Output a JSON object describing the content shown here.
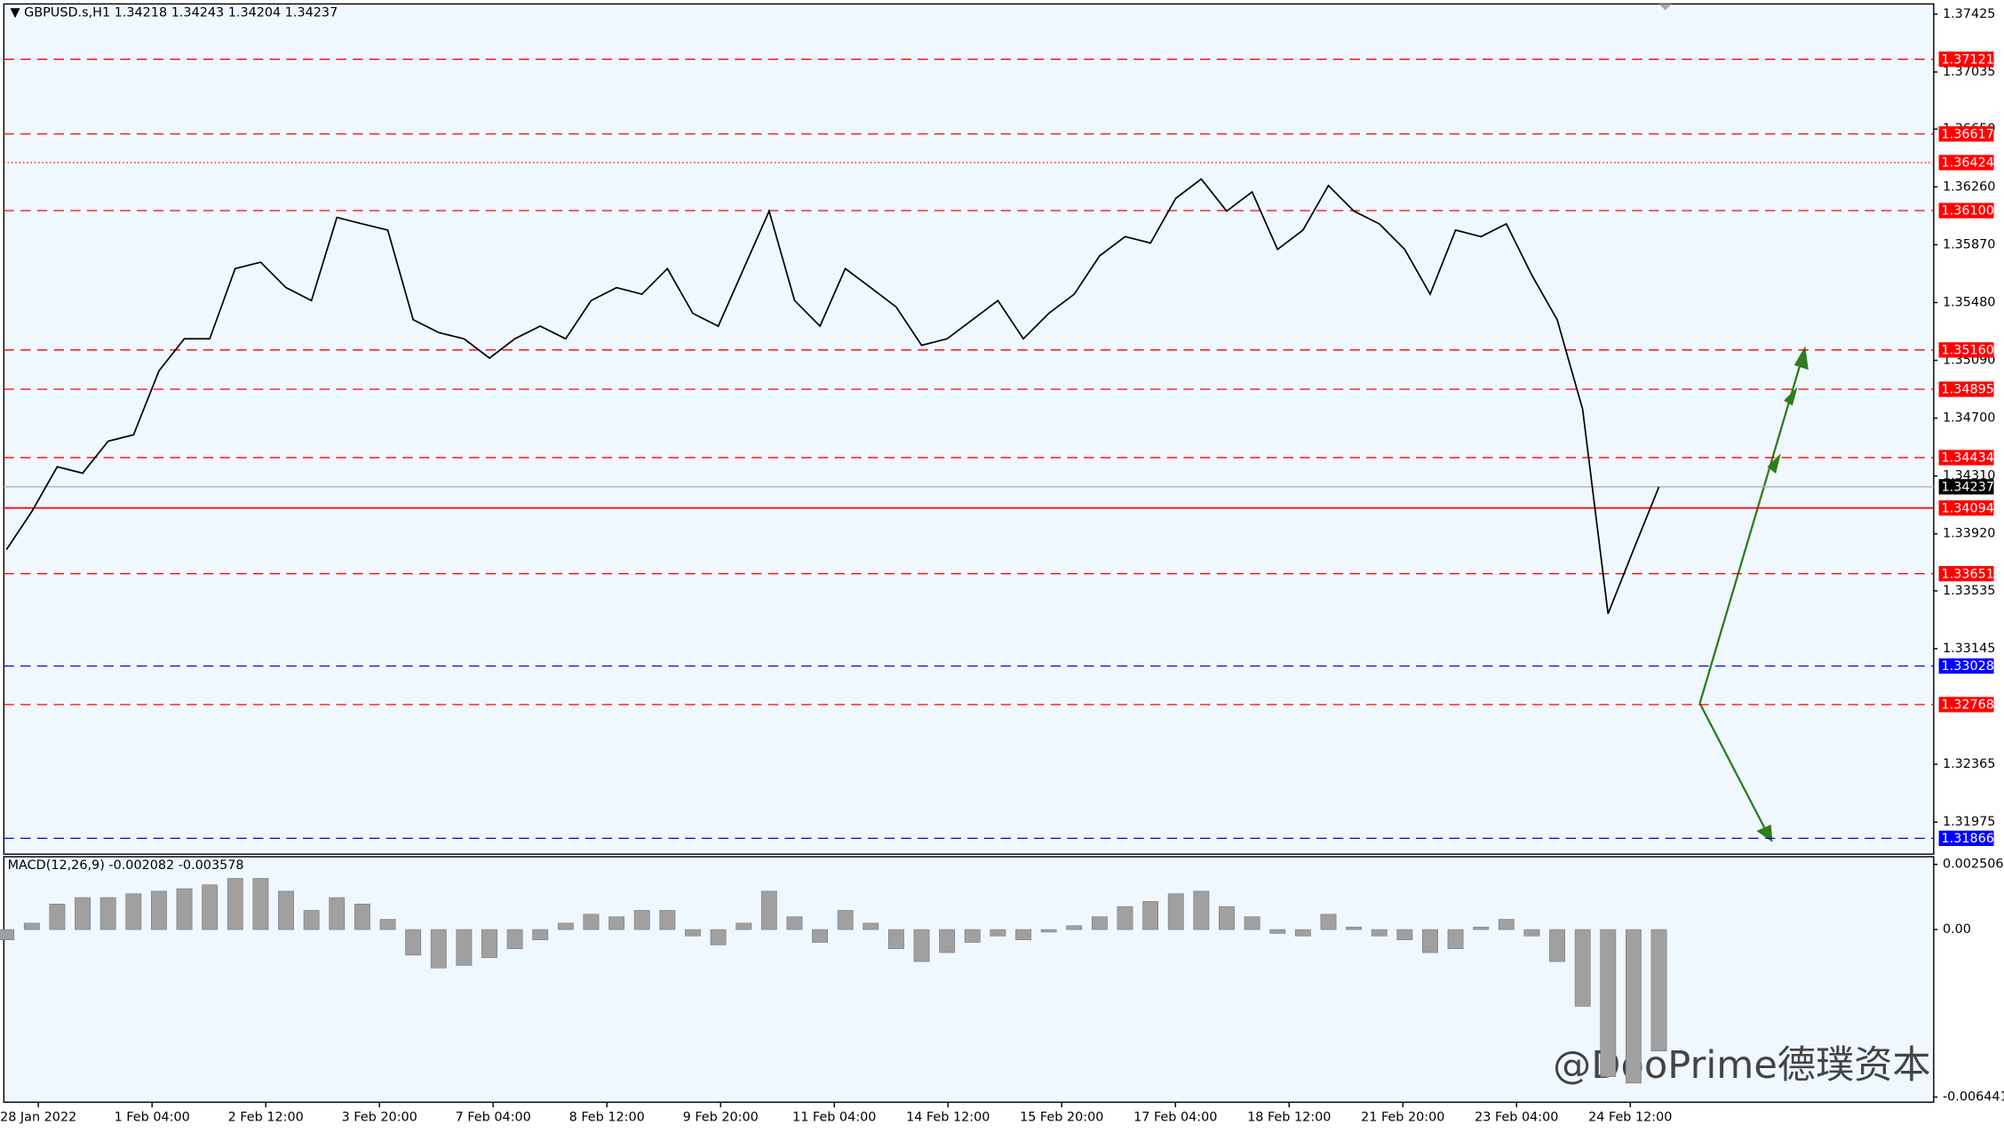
{
  "symbol": "GBPUSD.s,H1",
  "ohlc": [
    1.34218,
    1.34243,
    1.34204,
    1.34237
  ],
  "watermark": "@DooPrime德璞资本",
  "chart_data": [
    {
      "type": "line",
      "color": "#000000",
      "values": [
        1.33812,
        1.3407,
        1.34372,
        1.34329,
        1.34545,
        1.34588,
        1.35019,
        1.35235,
        1.35235,
        1.35709,
        1.35752,
        1.3558,
        1.35493,
        1.36054,
        1.36011,
        1.35968,
        1.35364,
        1.35278,
        1.35235,
        1.35105,
        1.35235,
        1.35321,
        1.35235,
        1.35493,
        1.3558,
        1.35536,
        1.35709,
        1.35407,
        1.35321,
        1.35709,
        1.36097,
        1.35493,
        1.35321,
        1.35709,
        1.3558,
        1.3545,
        1.35191,
        1.35235,
        1.35364,
        1.35493,
        1.35235,
        1.35407,
        1.35536,
        1.35795,
        1.35924,
        1.35881,
        1.36183,
        1.36313,
        1.36097,
        1.36226,
        1.35838,
        1.35968,
        1.36269,
        1.36097,
        1.36011,
        1.35838,
        1.35536,
        1.35968,
        1.35924,
        1.36011,
        1.35666,
        1.35364,
        1.3476,
        1.3338,
        1.33812,
        1.34237
      ],
      "ylim": [
        1.31759,
        1.37494
      ],
      "yticks": [
        1.37425,
        1.37035,
        {
          "value": 1.3665,
          "label": "1.36650"
        },
        {
          "value": 1.3626,
          "label": "1.36260"
        },
        {
          "value": 1.3587,
          "label": "1.35870"
        },
        {
          "value": 1.3548,
          "label": "1.35480"
        },
        {
          "value": 1.3509,
          "label": "1.35090"
        },
        {
          "value": 1.347,
          "label": "1.34700"
        },
        {
          "value": 1.3431,
          "label": "1.34310"
        },
        {
          "value": 1.3392,
          "label": "1.33920"
        },
        1.33535,
        1.33145,
        1.32365,
        1.31975
      ],
      "levels": [
        {
          "value": 1.37121,
          "label": "1.37121",
          "color": "#ff0000",
          "style": "dashed"
        },
        {
          "value": 1.36617,
          "label": "1.36617",
          "color": "#ff0000",
          "style": "dashed"
        },
        {
          "value": 1.36424,
          "label": "1.36424",
          "color": "#ff0000",
          "style": "dotted"
        },
        {
          "value": 1.361,
          "label": "1.36100",
          "color": "#ff0000",
          "style": "dashed"
        },
        {
          "value": 1.3516,
          "label": "1.35160",
          "color": "#ff0000",
          "style": "dashed"
        },
        {
          "value": 1.34895,
          "label": "1.34895",
          "color": "#ff0000",
          "style": "dashed"
        },
        {
          "value": 1.34434,
          "label": "1.34434",
          "color": "#ff0000",
          "style": "dashed"
        },
        {
          "value": 1.34237,
          "label": "1.34237",
          "color": "#000000",
          "style": "current"
        },
        {
          "value": 1.34094,
          "label": "1.34094",
          "color": "#ff0000",
          "style": "solid"
        },
        {
          "value": 1.33651,
          "label": "1.33651",
          "color": "#ff0000",
          "style": "dashed"
        },
        {
          "value": 1.33028,
          "label": "1.33028",
          "color": "#0000ff",
          "style": "dashed"
        },
        {
          "value": 1.32768,
          "label": "1.32768",
          "color": "#ff0000",
          "style": "dashed"
        },
        {
          "value": 1.31866,
          "label": "1.31866",
          "color": "#0000ff",
          "style": "dashed"
        }
      ],
      "x_labels": [
        "28 Jan 2022",
        "1 Feb 04:00",
        "2 Feb 12:00",
        "3 Feb 20:00",
        "7 Feb 04:00",
        "8 Feb 12:00",
        "9 Feb 20:00",
        "11 Feb 04:00",
        "14 Feb 12:00",
        "15 Feb 20:00",
        "17 Feb 04:00",
        "18 Feb 12:00",
        "21 Feb 20:00",
        "23 Feb 04:00",
        "24 Feb 12:00"
      ]
    },
    {
      "type": "bar",
      "title": "MACD(12,26,9)",
      "readout": [
        -0.002082,
        -0.003578
      ],
      "color": "#a0a0a0",
      "values": [
        -0.000394,
        0.000246,
        0.000984,
        0.00123,
        0.00123,
        0.001378,
        0.001476,
        0.001574,
        0.001722,
        0.001968,
        0.001968,
        0.001476,
        0.000738,
        0.00123,
        0.000984,
        0.000394,
        -0.000984,
        -0.001476,
        -0.001378,
        -0.001082,
        -0.000738,
        -0.000394,
        0.000246,
        0.00059,
        0.000492,
        0.000738,
        0.000738,
        -0.000246,
        -0.00059,
        0.000246,
        0.001476,
        0.000492,
        -0.000492,
        0.000738,
        0.000246,
        -0.000738,
        -0.00123,
        -0.000886,
        -0.000492,
        -0.000246,
        -0.000394,
        -9.8e-05,
        0.000148,
        0.000492,
        0.000886,
        0.001082,
        0.001378,
        0.001476,
        0.000886,
        0.000492,
        -0.000148,
        -0.000246,
        0.00059,
        9.8e-05,
        -0.000246,
        -0.000394,
        -0.000886,
        -0.000738,
        9.8e-05,
        0.000394,
        -0.000246,
        -0.00123,
        -0.002952,
        -0.005658,
        -0.005904,
        -0.00467
      ],
      "ylim": [
        -0.006441,
        0.002506
      ],
      "yticks": [
        0.002506,
        {
          "value": 0,
          "label": "0.00"
        },
        -0.006441
      ]
    }
  ]
}
